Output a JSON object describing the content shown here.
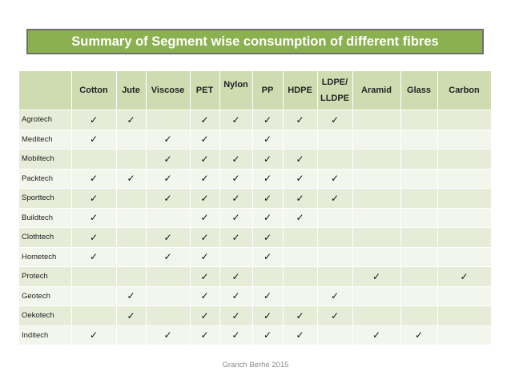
{
  "title": "Summary of Segment wise consumption of different fibres",
  "columns": [
    "Cotton",
    "Jute",
    "Viscose",
    "PET",
    "Nylon",
    "PP",
    "HDPE",
    "LDPE/ LLDPE",
    "Aramid",
    "Glass",
    "Carbon"
  ],
  "check_symbol": "✓",
  "rows": [
    {
      "name": "Agrotech",
      "checks": [
        1,
        1,
        0,
        1,
        1,
        1,
        1,
        1,
        0,
        0,
        0
      ]
    },
    {
      "name": "Meditech",
      "checks": [
        1,
        0,
        1,
        1,
        0,
        1,
        0,
        0,
        0,
        0,
        0
      ]
    },
    {
      "name": "Mobiltech",
      "checks": [
        0,
        0,
        1,
        1,
        1,
        1,
        1,
        0,
        0,
        0,
        0
      ]
    },
    {
      "name": "Packtech",
      "checks": [
        1,
        1,
        1,
        1,
        1,
        1,
        1,
        1,
        0,
        0,
        0
      ]
    },
    {
      "name": "Sporttech",
      "checks": [
        1,
        0,
        1,
        1,
        1,
        1,
        1,
        1,
        0,
        0,
        0
      ]
    },
    {
      "name": "Buildtech",
      "checks": [
        1,
        0,
        0,
        1,
        1,
        1,
        1,
        0,
        0,
        0,
        0
      ]
    },
    {
      "name": "Clothtech",
      "checks": [
        1,
        0,
        1,
        1,
        1,
        1,
        0,
        0,
        0,
        0,
        0
      ]
    },
    {
      "name": "Hometech",
      "checks": [
        1,
        0,
        1,
        1,
        0,
        1,
        0,
        0,
        0,
        0,
        0
      ]
    },
    {
      "name": "Protech",
      "checks": [
        0,
        0,
        0,
        1,
        1,
        0,
        0,
        0,
        1,
        0,
        1
      ]
    },
    {
      "name": "Geotech",
      "checks": [
        0,
        1,
        0,
        1,
        1,
        1,
        0,
        1,
        0,
        0,
        0
      ]
    },
    {
      "name": "Oekotech",
      "checks": [
        0,
        1,
        0,
        1,
        1,
        1,
        1,
        1,
        0,
        0,
        0
      ]
    },
    {
      "name": "Inditech",
      "checks": [
        1,
        0,
        1,
        1,
        1,
        1,
        1,
        0,
        1,
        1,
        0
      ]
    }
  ],
  "footer": "Granch Berhe 2015",
  "colors": {
    "title_bg": "#8bb050",
    "header_bg": "#cfdcb1",
    "row_odd": "#e6ecd7",
    "row_even": "#f3f6ec"
  }
}
